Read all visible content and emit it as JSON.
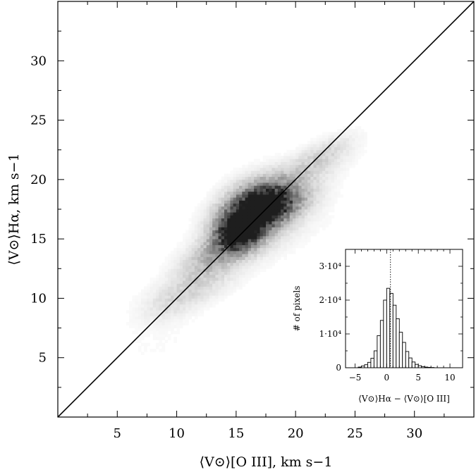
{
  "chart_data": [
    {
      "type": "scatter",
      "description_kind": "2D density",
      "xlabel": "⟨V⊙⟩[O III],   km s−1",
      "ylabel": "⟨V⊙⟩Hα,   km s−1",
      "xlim": [
        0,
        35
      ],
      "ylim": [
        0,
        35
      ],
      "xticks": [
        5,
        10,
        15,
        20,
        25,
        30
      ],
      "yticks": [
        5,
        10,
        15,
        20,
        25,
        30
      ],
      "reference_line": {
        "x": [
          0,
          35
        ],
        "y": [
          0,
          35
        ]
      },
      "density_clumps": [
        {
          "x": 16.0,
          "y": 17.0,
          "sx": 1.8,
          "sy": 1.6,
          "rho": 0.35,
          "w": 1.0
        },
        {
          "x": 15.0,
          "y": 15.3,
          "sx": 1.2,
          "sy": 1.0,
          "rho": 0.2,
          "w": 0.8
        },
        {
          "x": 17.5,
          "y": 18.0,
          "sx": 1.5,
          "sy": 1.2,
          "rho": 0.3,
          "w": 0.55
        },
        {
          "x": 18.5,
          "y": 17.5,
          "sx": 2.0,
          "sy": 1.2,
          "rho": 0.6,
          "w": 0.4
        },
        {
          "x": 13.0,
          "y": 13.5,
          "sx": 2.0,
          "sy": 1.5,
          "rho": 0.6,
          "w": 0.3
        },
        {
          "x": 11.0,
          "y": 10.5,
          "sx": 2.5,
          "sy": 1.3,
          "rho": 0.6,
          "w": 0.14
        },
        {
          "x": 20.5,
          "y": 20.5,
          "sx": 2.5,
          "sy": 1.5,
          "rho": 0.7,
          "w": 0.18
        },
        {
          "x": 22.5,
          "y": 22.3,
          "sx": 1.6,
          "sy": 1.0,
          "rho": 0.7,
          "w": 0.1
        },
        {
          "x": 18.0,
          "y": 15.0,
          "sx": 3.0,
          "sy": 1.8,
          "rho": 0.7,
          "w": 0.07
        },
        {
          "x": 9.0,
          "y": 9.0,
          "sx": 1.5,
          "sy": 1.0,
          "rho": 0.4,
          "w": 0.06
        },
        {
          "x": 8.0,
          "y": 6.0,
          "sx": 3.0,
          "sy": 1.5,
          "rho": 0.5,
          "w": 0.02
        }
      ]
    },
    {
      "type": "bar",
      "description_kind": "histogram",
      "xlabel": "⟨V⊙⟩Hα − ⟨V⊙⟩[O III]",
      "ylabel": "# of pixels",
      "xlim": [
        -6.5,
        12
      ],
      "ylim": [
        0,
        35000
      ],
      "xticks": [
        -5,
        0,
        5,
        10
      ],
      "yticks": [
        0,
        10000,
        20000,
        30000
      ],
      "ytick_labels": [
        "0",
        "1·10⁴",
        "2·10⁴",
        "3·10⁴"
      ],
      "vline_x": 0.6,
      "bin_width": 0.5,
      "bin_centers": [
        -4.25,
        -3.75,
        -3.25,
        -2.75,
        -2.25,
        -1.75,
        -1.25,
        -0.75,
        -0.25,
        0.25,
        0.75,
        1.25,
        1.75,
        2.25,
        2.75,
        3.25,
        3.75,
        4.25,
        4.75,
        5.25,
        5.75,
        6.25,
        6.75,
        7.25
      ],
      "values": [
        200,
        500,
        900,
        1600,
        2800,
        5000,
        9500,
        14000,
        20000,
        23500,
        22000,
        18500,
        14500,
        10500,
        7500,
        4800,
        2900,
        1700,
        1000,
        600,
        350,
        200,
        120,
        80
      ]
    }
  ]
}
